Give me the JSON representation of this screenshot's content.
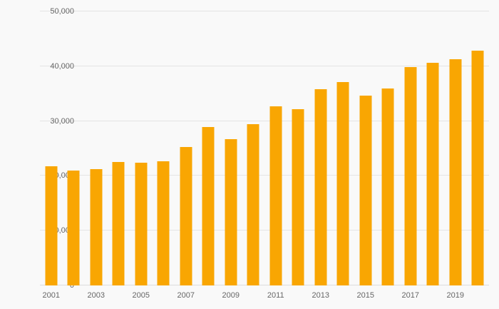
{
  "chart_data": {
    "type": "bar",
    "title": "",
    "xlabel": "",
    "ylabel": "",
    "categories": [
      "2001",
      "2002",
      "2003",
      "2004",
      "2005",
      "2006",
      "2007",
      "2008",
      "2009",
      "2010",
      "2011",
      "2012",
      "2013",
      "2014",
      "2015",
      "2016",
      "2017",
      "2018",
      "2019",
      "2020"
    ],
    "values": [
      21800,
      21000,
      21200,
      22500,
      22400,
      22600,
      25200,
      28900,
      26700,
      29400,
      32700,
      32200,
      35800,
      37100,
      34600,
      35900,
      39900,
      40600,
      41300,
      42900
    ],
    "ylim": [
      0,
      50000
    ],
    "ytick_interval": 10000,
    "ytick_labels": [
      "0",
      "10,000",
      "20,000",
      "30,000",
      "40,000",
      "50,000"
    ],
    "xtick_labels_shown": [
      "2001",
      "2003",
      "2005",
      "2007",
      "2009",
      "2011",
      "2013",
      "2015",
      "2017",
      "2019"
    ],
    "grid": true,
    "legend": "none",
    "bar_color": "#F9A602",
    "background_color": "#f9f9f9",
    "gridline_color": "#e4e4e4",
    "label_color": "#666666"
  }
}
